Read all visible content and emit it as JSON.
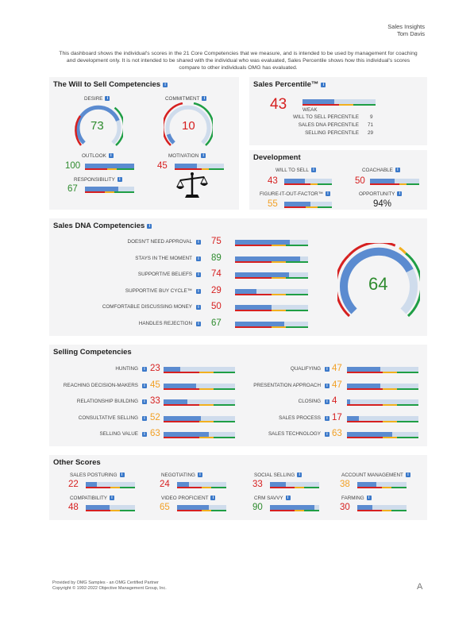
{
  "header": {
    "title": "Sales Insights",
    "name": "Tom Davis"
  },
  "intro": "This dashboard shows the individual's scores in the 21 Core Competencies that we measure, and is intended to be used by management for coaching and development only. It is not intended to be shared with the individual who was evaluated, Sales Percentile shows how this individual's scores compare to other individuals OMG has evaluated.",
  "will": {
    "title": "The Will to Sell Competencies",
    "desire": {
      "label": "DESIRE",
      "value": "73"
    },
    "commitment": {
      "label": "COMMITMENT",
      "value": "10"
    },
    "outlook": {
      "label": "OUTLOOK",
      "value": "100"
    },
    "motivation": {
      "label": "MOTIVATION",
      "value": "45"
    },
    "responsibility": {
      "label": "RESPONSIBILITY",
      "value": "67"
    }
  },
  "percentile": {
    "title": "Sales Percentile™",
    "value": "43",
    "rating": "WEAK",
    "rows": [
      {
        "label": "WILL TO SELL PERCENTILE",
        "value": "9"
      },
      {
        "label": "SALES DNA PERCENTILE",
        "value": "71"
      },
      {
        "label": "SELLING PERCENTILE",
        "value": "29"
      }
    ]
  },
  "development": {
    "title": "Development",
    "will_to_sell": {
      "label": "WILL TO SELL",
      "value": "43"
    },
    "coachable": {
      "label": "COACHABLE",
      "value": "50"
    },
    "figure_it_out": {
      "label": "FIGURE-IT-OUT-FACTOR™",
      "value": "55"
    },
    "opportunity": {
      "label": "OPPORTUNITY",
      "value": "94%"
    }
  },
  "dna": {
    "title": "Sales DNA Competencies",
    "gauge_value": "64",
    "rows": [
      {
        "label": "DOESN'T NEED APPROVAL",
        "value": "75",
        "color": "red",
        "pct": 0.75
      },
      {
        "label": "STAYS IN THE MOMENT",
        "value": "89",
        "color": "green",
        "pct": 0.89
      },
      {
        "label": "SUPPORTIVE BELIEFS",
        "value": "74",
        "color": "red",
        "pct": 0.74
      },
      {
        "label": "SUPPORTIVE BUY CYCLE™",
        "value": "29",
        "color": "red",
        "pct": 0.29
      },
      {
        "label": "COMFORTABLE DISCUSSING MONEY",
        "value": "50",
        "color": "red",
        "pct": 0.5
      },
      {
        "label": "HANDLES REJECTION",
        "value": "67",
        "color": "green",
        "pct": 0.67
      }
    ]
  },
  "selling": {
    "title": "Selling Competencies",
    "left": [
      {
        "label": "HUNTING",
        "value": "23",
        "color": "red",
        "pct": 0.23
      },
      {
        "label": "REACHING DECISION-MAKERS",
        "value": "45",
        "color": "orange",
        "pct": 0.45
      },
      {
        "label": "RELATIONSHIP BUILDING",
        "value": "33",
        "color": "red",
        "pct": 0.33
      },
      {
        "label": "CONSULTATIVE SELLING",
        "value": "52",
        "color": "orange",
        "pct": 0.52
      },
      {
        "label": "SELLING VALUE",
        "value": "63",
        "color": "orange",
        "pct": 0.63
      }
    ],
    "right": [
      {
        "label": "QUALIFYING",
        "value": "47",
        "color": "orange",
        "pct": 0.47
      },
      {
        "label": "PRESENTATION APPROACH",
        "value": "47",
        "color": "orange",
        "pct": 0.47
      },
      {
        "label": "CLOSING",
        "value": "4",
        "color": "red",
        "pct": 0.04
      },
      {
        "label": "SALES PROCESS",
        "value": "17",
        "color": "red",
        "pct": 0.17
      },
      {
        "label": "SALES TECHNOLOGY",
        "value": "63",
        "color": "orange",
        "pct": 0.63
      }
    ]
  },
  "other": {
    "title": "Other Scores",
    "items": [
      {
        "label": "SALES POSTURING",
        "value": "22",
        "color": "red",
        "pct": 0.22
      },
      {
        "label": "NEGOTIATING",
        "value": "24",
        "color": "red",
        "pct": 0.24
      },
      {
        "label": "SOCIAL SELLING",
        "value": "33",
        "color": "red",
        "pct": 0.33
      },
      {
        "label": "ACCOUNT MANAGEMENT",
        "value": "38",
        "color": "orange",
        "pct": 0.38
      },
      {
        "label": "COMPATIBILITY",
        "value": "48",
        "color": "red",
        "pct": 0.48
      },
      {
        "label": "VIDEO PROFICIENT",
        "value": "65",
        "color": "orange",
        "pct": 0.65
      },
      {
        "label": "CRM SAVVY",
        "value": "90",
        "color": "green",
        "pct": 0.9
      },
      {
        "label": "FARMING",
        "value": "30",
        "color": "red",
        "pct": 0.3
      }
    ]
  },
  "footer": {
    "line1": "Provided by OMG Samples - an OMG Certified Partner",
    "line2": "Copyright © 1992-2022 Objective Management Group, Inc.",
    "grade": "A"
  },
  "colors": {
    "red": "#d62020",
    "orange": "#f2a025",
    "green": "#2e8b2e",
    "blue": "#5b8bd0",
    "light_blue": "#cfdcec"
  },
  "icons": {
    "info": "info-icon",
    "scale": "balance-scale-icon"
  }
}
